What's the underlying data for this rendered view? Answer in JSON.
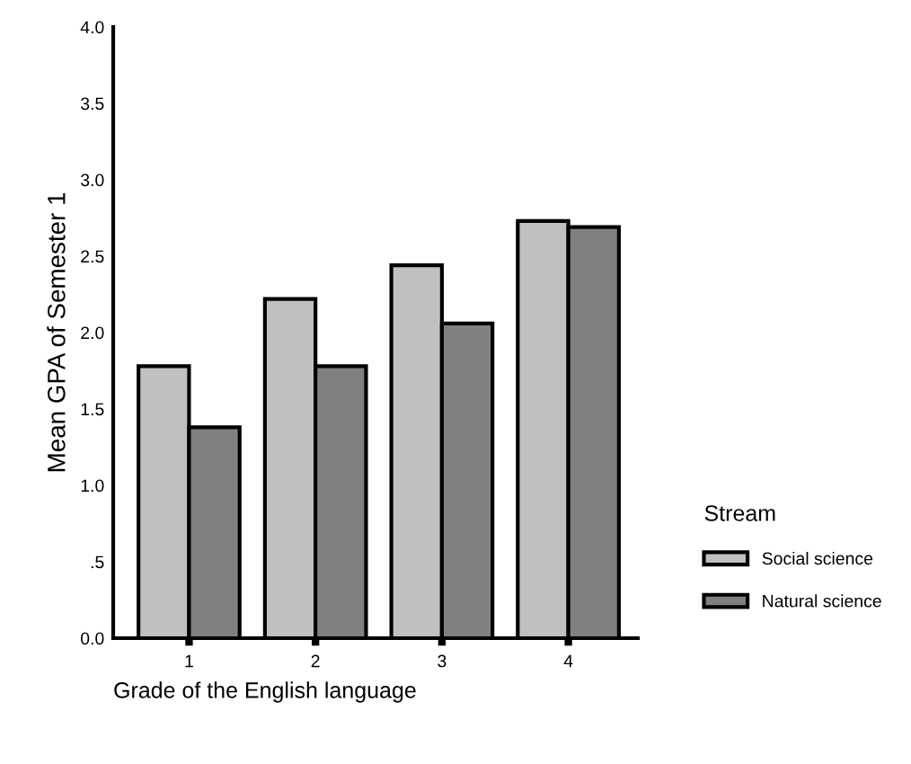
{
  "chart_data": {
    "type": "bar",
    "xlabel": "Grade of the English language",
    "ylabel": "Mean GPA of Semester 1",
    "legend_title": "Stream",
    "categories": [
      "1",
      "2",
      "3",
      "4"
    ],
    "series": [
      {
        "name": "Social science",
        "color": "#c0c0c0",
        "values": [
          1.78,
          2.22,
          2.44,
          2.73
        ]
      },
      {
        "name": "Natural science",
        "color": "#808080",
        "values": [
          1.38,
          1.78,
          2.06,
          2.69
        ]
      }
    ],
    "ylim": [
      0,
      4
    ],
    "yticks": [
      {
        "value": 0,
        "label": "0.0"
      },
      {
        "value": 0.5,
        "label": ".5"
      },
      {
        "value": 1,
        "label": "1.0"
      },
      {
        "value": 1.5,
        "label": "1.5"
      },
      {
        "value": 2,
        "label": "2.0"
      },
      {
        "value": 2.5,
        "label": "2.5"
      },
      {
        "value": 3,
        "label": "3.0"
      },
      {
        "value": 3.5,
        "label": "3.5"
      },
      {
        "value": 4,
        "label": "4.0"
      }
    ],
    "grid": false,
    "legend": "right"
  }
}
